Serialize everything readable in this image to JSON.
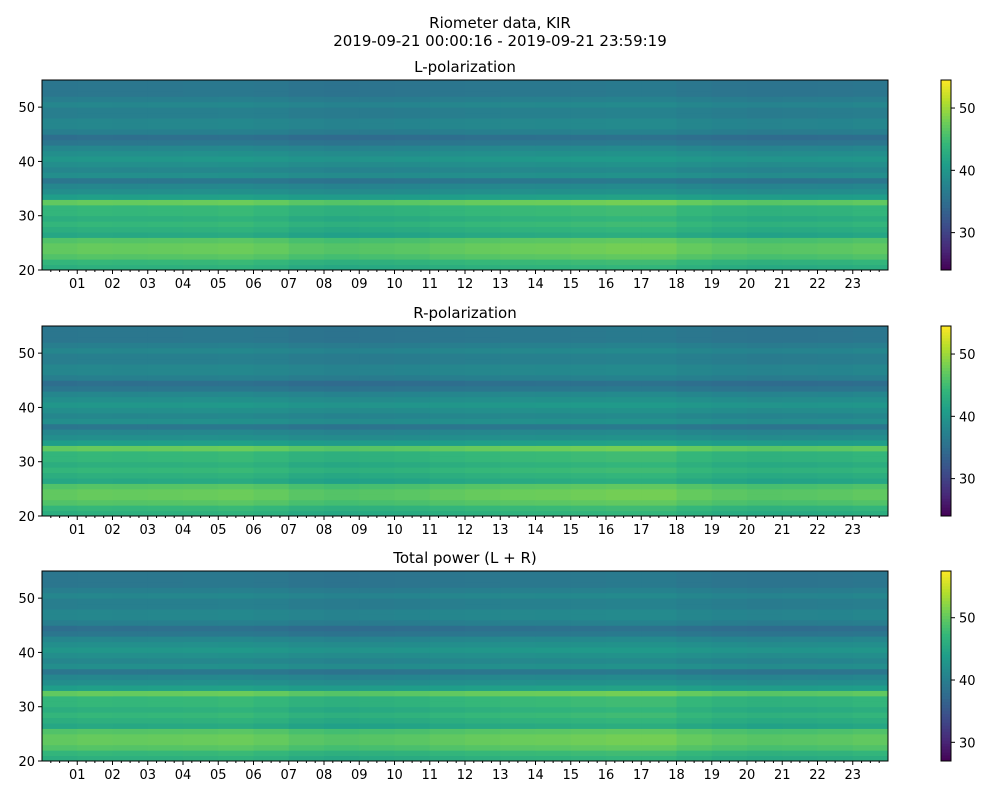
{
  "chart_data": {
    "type": "heatmap",
    "title": "Riometer data, KIR",
    "subtitle": "2019-09-21 00:00:16 - 2019-09-21 23:59:19",
    "xlabel": "",
    "ylabel": "",
    "x_range_hours": [
      0,
      24
    ],
    "x_tick_labels": [
      "01",
      "02",
      "03",
      "04",
      "05",
      "06",
      "07",
      "08",
      "09",
      "10",
      "11",
      "12",
      "13",
      "14",
      "15",
      "16",
      "17",
      "18",
      "19",
      "20",
      "21",
      "22",
      "23"
    ],
    "ylim": [
      20,
      55
    ],
    "y_ticks": [
      20,
      30,
      40,
      50
    ],
    "freq_bins": [
      20,
      21,
      22,
      23,
      24,
      25,
      26,
      27,
      28,
      29,
      30,
      31,
      32,
      33,
      34,
      35,
      36,
      37,
      38,
      39,
      40,
      41,
      42,
      43,
      44,
      45,
      46,
      47,
      48,
      49,
      50,
      51,
      52,
      53,
      54
    ],
    "freq_profile_L": [
      43,
      44,
      46,
      47,
      47,
      46,
      42,
      43,
      44,
      43,
      44,
      44,
      47,
      41,
      39,
      38,
      36,
      39,
      38,
      39,
      40,
      39,
      38,
      36,
      35,
      37,
      38,
      38,
      37,
      37,
      38,
      37,
      36,
      36,
      36
    ],
    "hourly_offset": [
      0,
      0.3,
      0.2,
      0.3,
      0.4,
      0.6,
      0.2,
      -0.5,
      -0.8,
      -0.6,
      -0.4,
      0,
      0.3,
      0.5,
      0.6,
      0.8,
      1,
      1,
      0.2,
      -0.3,
      -0.6,
      -0.5,
      -0.3,
      0
    ],
    "panels": [
      {
        "title": "L-polarization",
        "offset": 0,
        "clim": [
          24,
          54.5
        ],
        "cbar_ticks": [
          30,
          40,
          50
        ]
      },
      {
        "title": "R-polarization",
        "offset": 0,
        "clim": [
          24,
          54.5
        ],
        "cbar_ticks": [
          30,
          40,
          50
        ]
      },
      {
        "title": "Total power (L + R)",
        "offset": 3,
        "clim": [
          27,
          57.5
        ],
        "cbar_ticks": [
          30,
          40,
          50
        ]
      }
    ],
    "colormap": "viridis"
  }
}
